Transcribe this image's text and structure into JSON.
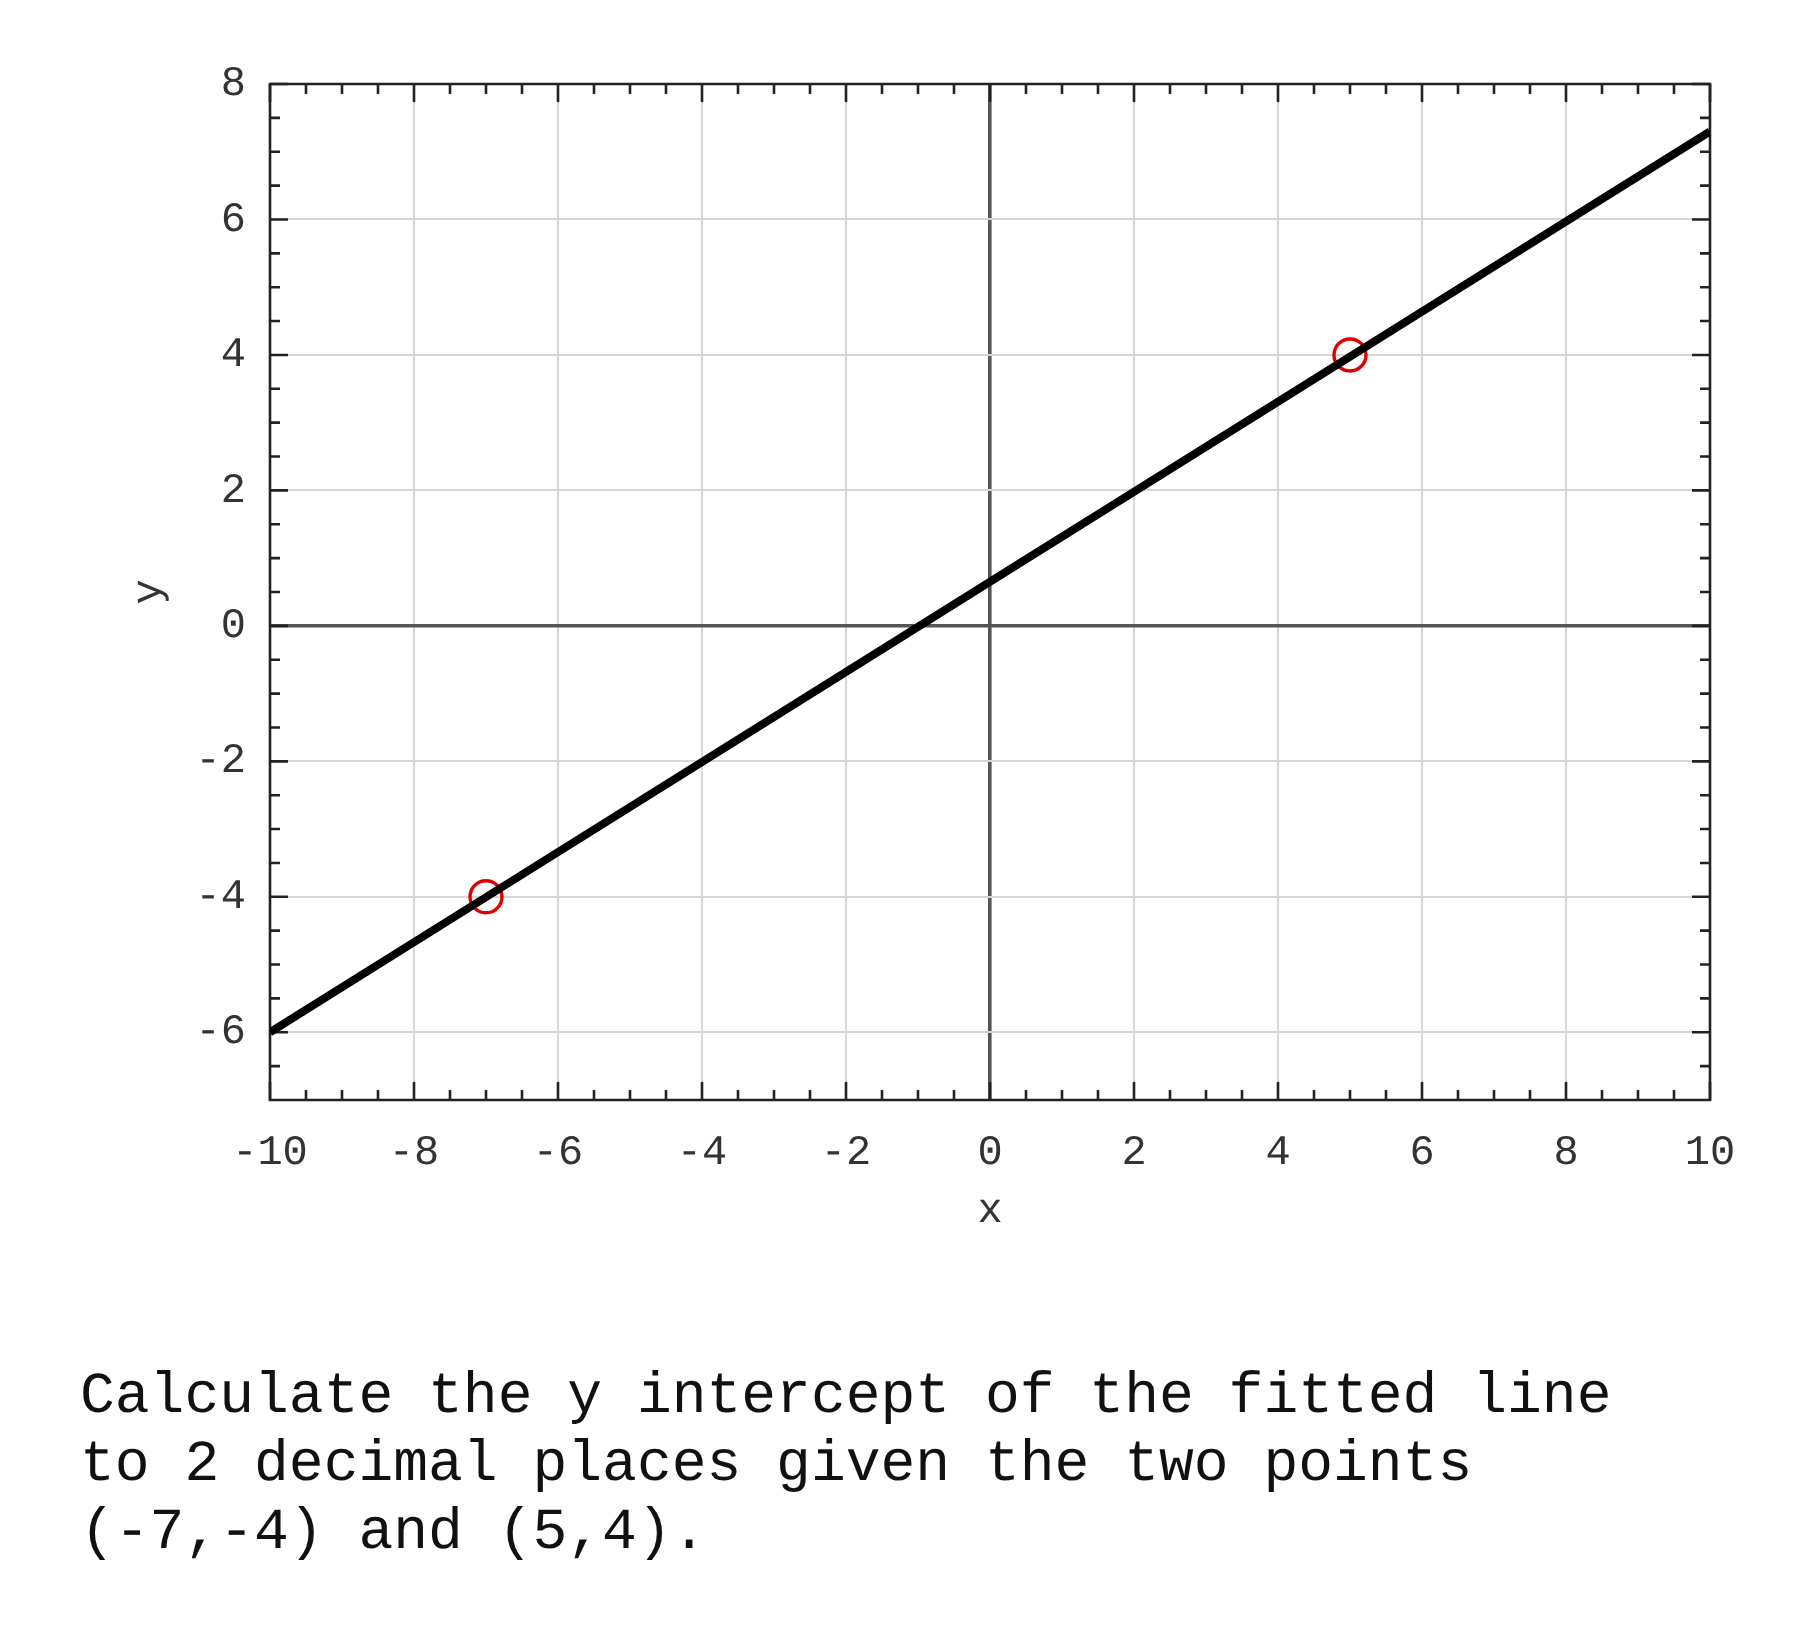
{
  "chart_data": {
    "type": "line",
    "xlabel": "x",
    "ylabel": "y",
    "xlim": [
      -10,
      10
    ],
    "ylim": [
      -7,
      8
    ],
    "xticks": [
      -10,
      {
        "value": -9.5,
        "label": null
      },
      {
        "value": -9,
        "label": null
      },
      {
        "value": -8.5,
        "label": null
      },
      -8,
      {
        "value": -7.5,
        "label": null
      },
      {
        "value": -7,
        "label": null
      },
      {
        "value": -6.5,
        "label": null
      },
      -6,
      {
        "value": -5.5,
        "label": null
      },
      {
        "value": -5,
        "label": null
      },
      {
        "value": -4.5,
        "label": null
      },
      -4,
      {
        "value": -3.5,
        "label": null
      },
      {
        "value": -3,
        "label": null
      },
      {
        "value": -2.5,
        "label": null
      },
      -2,
      {
        "value": -1.5,
        "label": null
      },
      {
        "value": -1,
        "label": null
      },
      {
        "value": -0.5,
        "label": null
      },
      0,
      {
        "value": 0.5,
        "label": null
      },
      {
        "value": 1,
        "label": null
      },
      {
        "value": 1.5,
        "label": null
      },
      2,
      {
        "value": 2.5,
        "label": null
      },
      {
        "value": 3,
        "label": null
      },
      {
        "value": 3.5,
        "label": null
      },
      4,
      {
        "value": 4.5,
        "label": null
      },
      {
        "value": 5,
        "label": null
      },
      {
        "value": 5.5,
        "label": null
      },
      6,
      {
        "value": 6.5,
        "label": null
      },
      {
        "value": 7,
        "label": null
      },
      {
        "value": 7.5,
        "label": null
      },
      8,
      {
        "value": 8.5,
        "label": null
      },
      {
        "value": 9,
        "label": null
      },
      {
        "value": 9.5,
        "label": null
      },
      10
    ],
    "yticks": [
      {
        "value": -6.5,
        "label": null
      },
      -6,
      {
        "value": -5.5,
        "label": null
      },
      {
        "value": -5,
        "label": null
      },
      {
        "value": -4.5,
        "label": null
      },
      -4,
      {
        "value": -3.5,
        "label": null
      },
      {
        "value": -3,
        "label": null
      },
      {
        "value": -2.5,
        "label": null
      },
      -2,
      {
        "value": -1.5,
        "label": null
      },
      {
        "value": -1,
        "label": null
      },
      {
        "value": -0.5,
        "label": null
      },
      0,
      {
        "value": 0.5,
        "label": null
      },
      {
        "value": 1,
        "label": null
      },
      {
        "value": 1.5,
        "label": null
      },
      2,
      {
        "value": 2.5,
        "label": null
      },
      {
        "value": 3,
        "label": null
      },
      {
        "value": 3.5,
        "label": null
      },
      4,
      {
        "value": 4.5,
        "label": null
      },
      {
        "value": 5,
        "label": null
      },
      {
        "value": 5.5,
        "label": null
      },
      6,
      {
        "value": 6.5,
        "label": null
      },
      {
        "value": 7,
        "label": null
      },
      {
        "value": 7.5,
        "label": null
      },
      8
    ],
    "grid": true,
    "series": [
      {
        "type": "line",
        "color": "#000000",
        "x": [
          -10,
          10
        ],
        "values": [
          -6,
          7.3
        ],
        "marker": "none",
        "line_style": "solid"
      },
      {
        "type": "scatter",
        "color": "#e00000",
        "x": [
          -7,
          5
        ],
        "values": [
          -4,
          4
        ],
        "marker": "circle"
      }
    ],
    "annotations": [
      "Calculate the y intercept of the fitted line to 2 decimal places given the two points (-7,-4) and (5,4)."
    ]
  }
}
